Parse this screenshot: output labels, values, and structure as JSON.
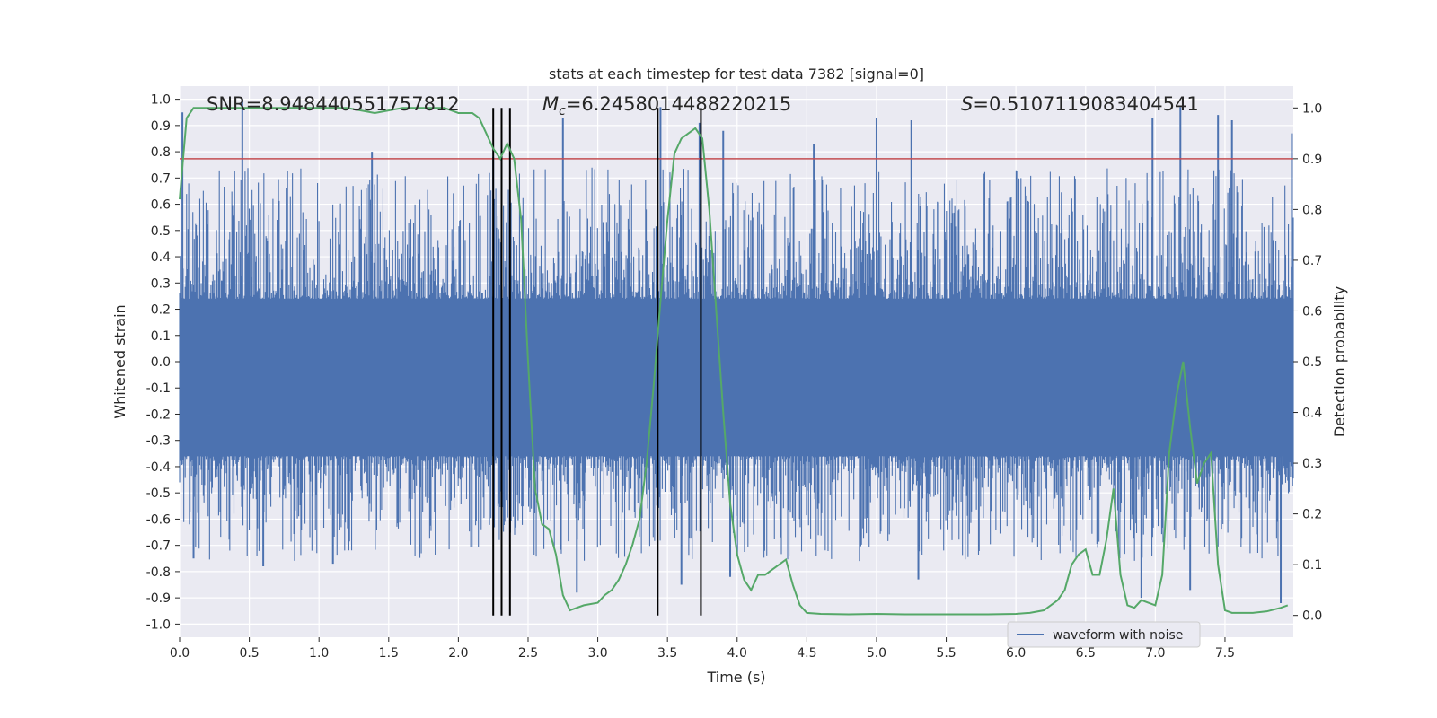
{
  "chart_data": {
    "type": "line",
    "title": "stats at each timestep for test data 7382 [signal=0]",
    "xlabel": "Time (s)",
    "ylabel_left": "Whitened strain",
    "ylabel_right": "Detection probability",
    "xlim": [
      0.0,
      7.99
    ],
    "ylim_left": [
      -1.05,
      1.05
    ],
    "ylim_right": [
      -0.043,
      1.043
    ],
    "grid": true,
    "x_ticks": [
      "0.0",
      "0.5",
      "1.0",
      "1.5",
      "2.0",
      "2.5",
      "3.0",
      "3.5",
      "4.0",
      "4.5",
      "5.0",
      "5.5",
      "6.0",
      "6.5",
      "7.0",
      "7.5"
    ],
    "y_left_ticks": [
      "-1.0",
      "-0.9",
      "-0.8",
      "-0.7",
      "-0.6",
      "-0.5",
      "-0.4",
      "-0.3",
      "-0.2",
      "-0.1",
      "0.0",
      "0.1",
      "0.2",
      "0.3",
      "0.4",
      "0.5",
      "0.6",
      "0.7",
      "0.8",
      "0.9",
      "1.0"
    ],
    "y_right_ticks": [
      "0.0",
      "0.1",
      "0.2",
      "0.3",
      "0.4",
      "0.5",
      "0.6",
      "0.7",
      "0.8",
      "0.9",
      "1.0"
    ],
    "annotations": {
      "snr": {
        "label": "SNR",
        "value": "=8.948440551757812"
      },
      "mc": {
        "label": "M",
        "subscript": "c",
        "value": "=6.2458014488220215"
      },
      "s": {
        "label": "S",
        "value": "=0.5107119083404541"
      }
    },
    "threshold": {
      "axis": "right",
      "value": 0.9
    },
    "vertical_markers": [
      2.25,
      2.31,
      2.37,
      3.43,
      3.74
    ],
    "waveform_series": {
      "name": "waveform with noise",
      "color": "#4c72b0",
      "spikes_upper": [
        [
          0.02,
          0.95
        ],
        [
          0.45,
          1.0
        ],
        [
          1.38,
          0.8
        ],
        [
          2.25,
          0.78
        ],
        [
          2.75,
          0.93
        ],
        [
          3.45,
          0.97
        ],
        [
          3.73,
          0.91
        ],
        [
          3.9,
          0.88
        ],
        [
          4.55,
          0.83
        ],
        [
          5.0,
          0.93
        ],
        [
          5.25,
          0.92
        ],
        [
          6.98,
          0.93
        ],
        [
          7.18,
          0.97
        ],
        [
          7.45,
          0.94
        ],
        [
          7.55,
          0.92
        ],
        [
          7.98,
          0.87
        ]
      ],
      "spikes_lower": [
        [
          0.1,
          -0.75
        ],
        [
          0.6,
          -0.78
        ],
        [
          1.1,
          -0.77
        ],
        [
          2.85,
          -0.88
        ],
        [
          3.6,
          -0.85
        ],
        [
          3.95,
          -0.82
        ],
        [
          5.3,
          -0.83
        ],
        [
          6.9,
          -0.9
        ],
        [
          7.25,
          -0.87
        ],
        [
          7.9,
          -0.92
        ]
      ]
    },
    "probability_series": {
      "name": "detection probability",
      "color": "#55a868",
      "x": [
        0.0,
        0.05,
        0.1,
        0.2,
        0.4,
        0.6,
        0.8,
        1.0,
        1.2,
        1.4,
        1.6,
        1.8,
        1.9,
        2.0,
        2.1,
        2.15,
        2.2,
        2.25,
        2.3,
        2.35,
        2.4,
        2.45,
        2.5,
        2.55,
        2.6,
        2.65,
        2.7,
        2.75,
        2.8,
        2.9,
        3.0,
        3.05,
        3.1,
        3.15,
        3.2,
        3.25,
        3.3,
        3.35,
        3.4,
        3.45,
        3.5,
        3.55,
        3.6,
        3.65,
        3.7,
        3.75,
        3.8,
        3.85,
        3.9,
        3.95,
        4.0,
        4.05,
        4.1,
        4.15,
        4.2,
        4.25,
        4.3,
        4.35,
        4.4,
        4.45,
        4.5,
        4.6,
        4.8,
        5.0,
        5.2,
        5.5,
        5.8,
        6.0,
        6.1,
        6.2,
        6.25,
        6.3,
        6.35,
        6.4,
        6.45,
        6.5,
        6.55,
        6.6,
        6.65,
        6.7,
        6.75,
        6.8,
        6.85,
        6.9,
        6.95,
        7.0,
        7.05,
        7.1,
        7.15,
        7.2,
        7.25,
        7.3,
        7.35,
        7.4,
        7.45,
        7.5,
        7.55,
        7.6,
        7.7,
        7.8,
        7.9,
        7.95
      ],
      "y": [
        0.82,
        0.98,
        1.0,
        1.0,
        1.0,
        1.0,
        1.0,
        1.0,
        1.0,
        0.99,
        1.0,
        1.0,
        1.0,
        0.99,
        0.99,
        0.98,
        0.95,
        0.92,
        0.9,
        0.93,
        0.9,
        0.78,
        0.5,
        0.25,
        0.18,
        0.17,
        0.12,
        0.04,
        0.01,
        0.02,
        0.025,
        0.04,
        0.05,
        0.07,
        0.1,
        0.14,
        0.19,
        0.3,
        0.45,
        0.62,
        0.78,
        0.91,
        0.94,
        0.95,
        0.96,
        0.94,
        0.8,
        0.6,
        0.4,
        0.22,
        0.12,
        0.07,
        0.05,
        0.08,
        0.08,
        0.09,
        0.1,
        0.11,
        0.06,
        0.02,
        0.005,
        0.003,
        0.002,
        0.003,
        0.002,
        0.002,
        0.002,
        0.003,
        0.005,
        0.01,
        0.02,
        0.03,
        0.05,
        0.1,
        0.12,
        0.13,
        0.08,
        0.08,
        0.15,
        0.25,
        0.08,
        0.02,
        0.015,
        0.03,
        0.025,
        0.02,
        0.08,
        0.32,
        0.43,
        0.5,
        0.37,
        0.26,
        0.3,
        0.32,
        0.1,
        0.01,
        0.005,
        0.005,
        0.005,
        0.008,
        0.015,
        0.02
      ]
    }
  }
}
